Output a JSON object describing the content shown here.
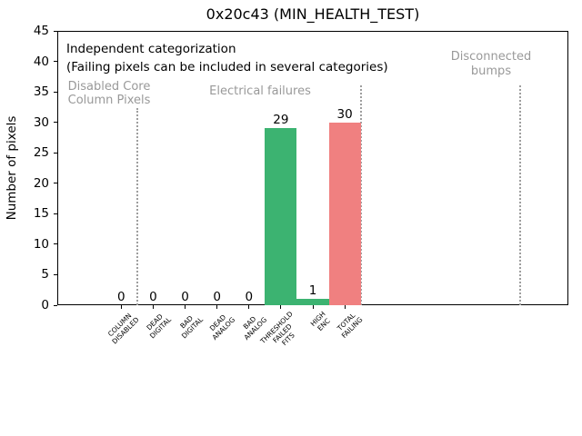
{
  "chart_data": {
    "type": "bar",
    "title": "0x20c43 (MIN_HEALTH_TEST)",
    "ylabel": "Number of pixels",
    "xlabel": "",
    "ylim": [
      0,
      45
    ],
    "yticks": [
      0,
      5,
      10,
      15,
      20,
      25,
      30,
      35,
      40,
      45
    ],
    "xlim_categories": [
      -2,
      14
    ],
    "grid": false,
    "legend": null,
    "categories": [
      "COLUMN\nDISABLED",
      "DEAD\nDIGITAL",
      "BAD\nDIGITAL",
      "DEAD\nANALOG",
      "BAD\nANALOG",
      "THRESHOLD\nFAILED\nFITS",
      "HIGH\nENC",
      "TOTAL\nFAILING"
    ],
    "values": [
      0,
      0,
      0,
      0,
      0,
      29,
      1,
      30
    ],
    "bar_value_labels": [
      "0",
      "0",
      "0",
      "0",
      "0",
      "29",
      "1",
      "30"
    ],
    "bar_colors": [
      "#3cb371",
      "#3cb371",
      "#3cb371",
      "#3cb371",
      "#3cb371",
      "#3cb371",
      "#3cb371",
      "#f08080"
    ],
    "annotations": {
      "note_line1": "Independent categorization",
      "note_line2": "(Failing pixels can be included in several categories)",
      "sections": [
        {
          "label": "Disabled Core\nColumn Pixels"
        },
        {
          "label": "Electrical failures"
        },
        {
          "label": "Disconnected\nbumps"
        }
      ]
    },
    "separators_at_category": [
      0.5,
      7.5,
      12.5
    ],
    "separator_top_value": [
      32.4,
      36.1,
      36.1
    ],
    "colors": {
      "bar_green": "#3cb371",
      "bar_red": "#f08080",
      "gray_label": "#999999",
      "separator": "#9e9e9e",
      "axis": "#000000",
      "background": "#ffffff"
    }
  }
}
